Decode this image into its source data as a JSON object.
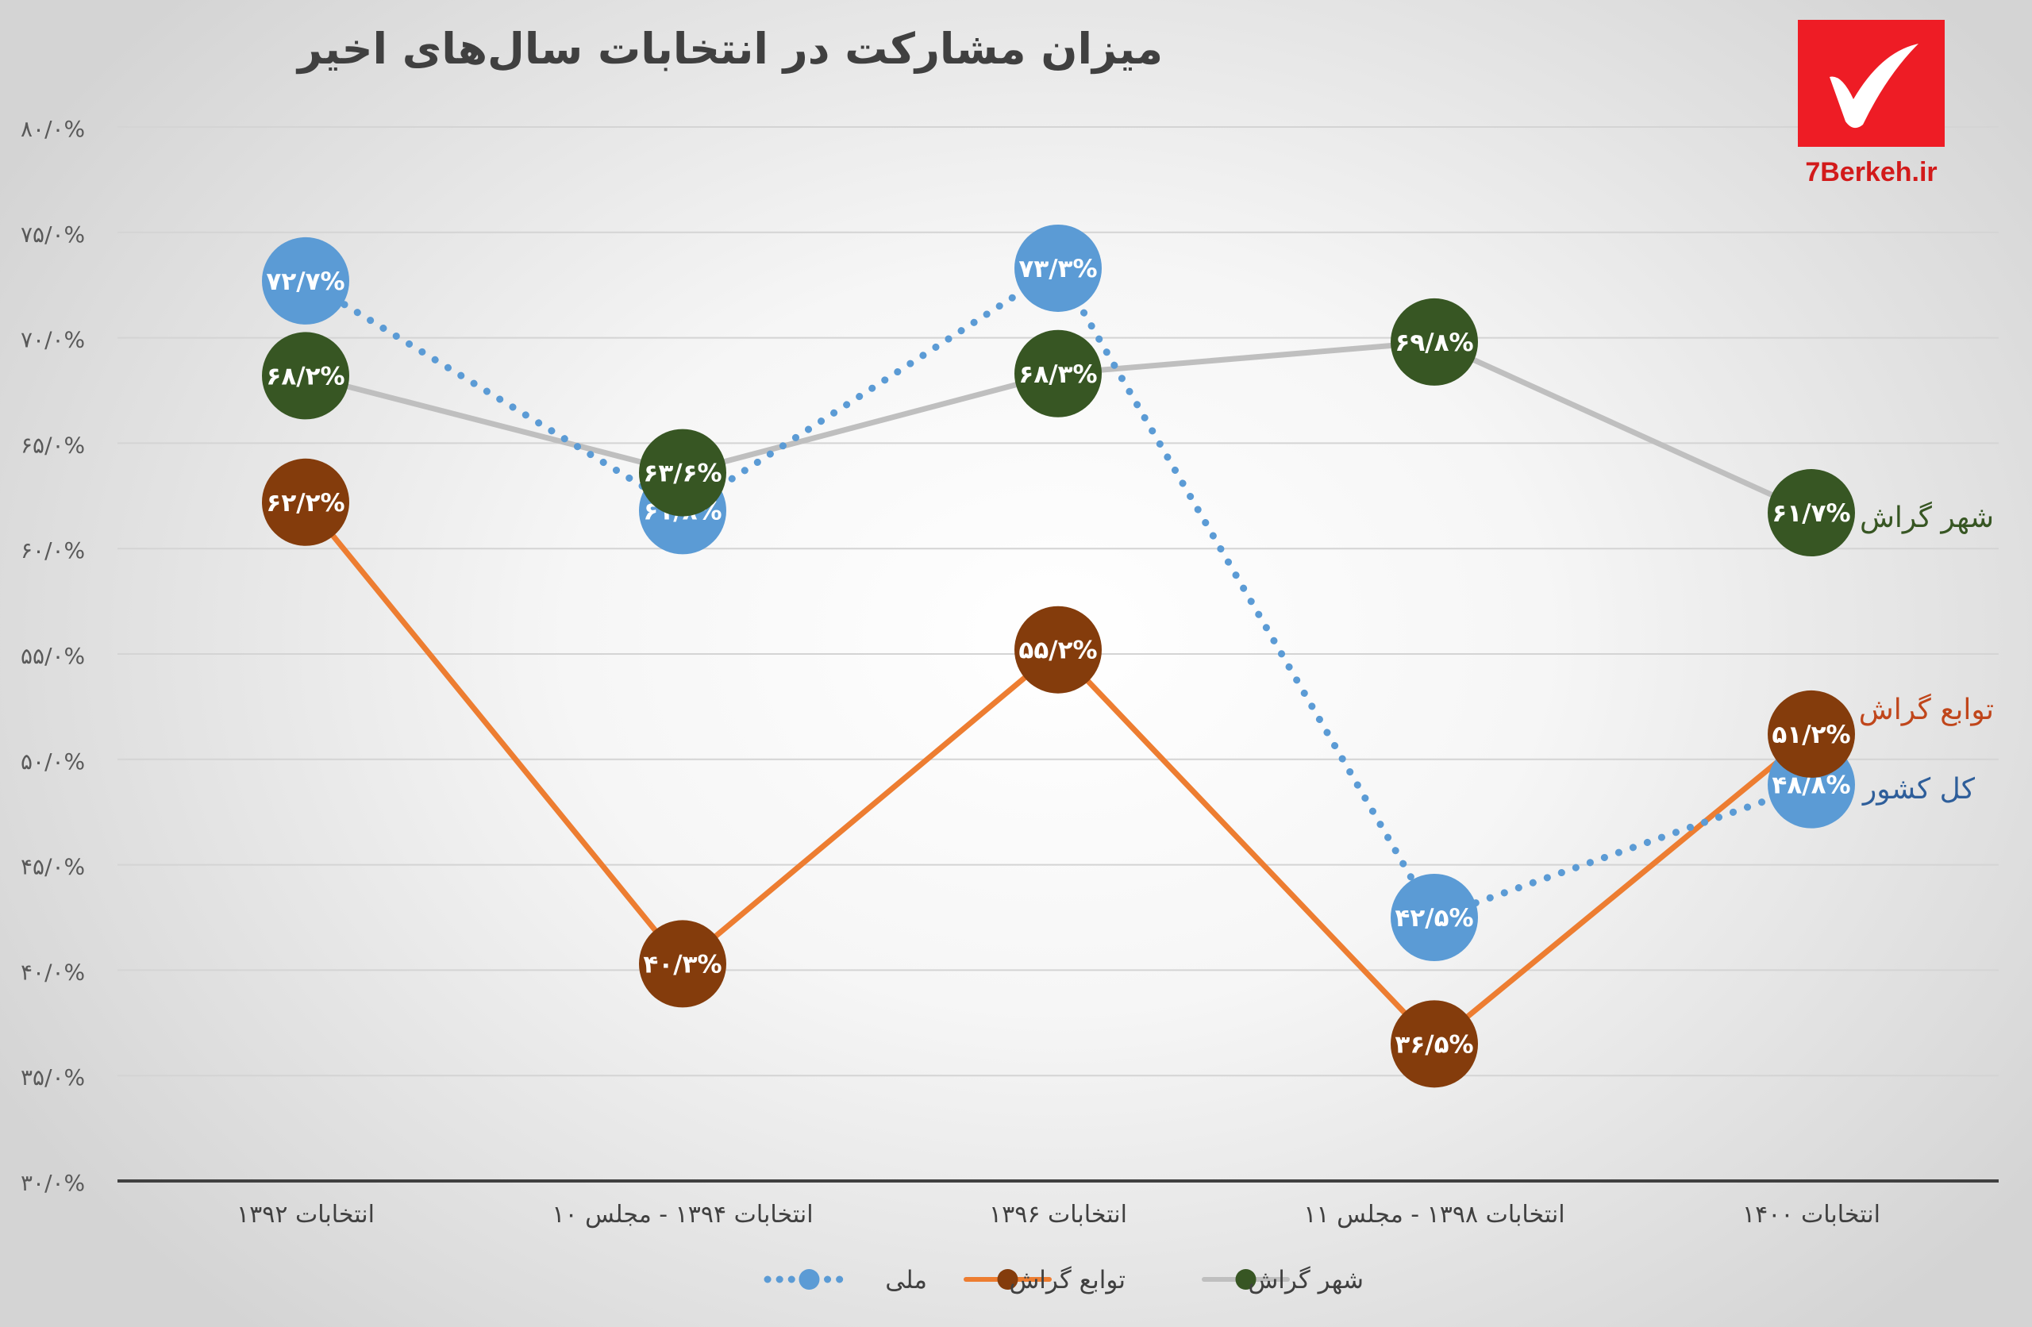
{
  "brand": {
    "logo_icon": "checkmark-icon",
    "site": "7Berkeh.ir",
    "color": "#ee1c25"
  },
  "chart_data": {
    "type": "line",
    "title": "میزان مشارکت در انتخابات سال‌های اخیر",
    "categories": [
      "انتخابات ۱۳۹۲",
      "انتخابات ۱۳۹۴ - مجلس ۱۰",
      "انتخابات ۱۳۹۶",
      "انتخابات ۱۳۹۸ - مجلس ۱۱",
      "انتخابات ۱۴۰۰"
    ],
    "ylim": [
      30,
      80
    ],
    "yticks": [
      30,
      35,
      40,
      45,
      50,
      55,
      60,
      65,
      70,
      75,
      80
    ],
    "ytick_labels": [
      "۳۰/۰%",
      "۳۵/۰%",
      "۴۰/۰%",
      "۴۵/۰%",
      "۵۰/۰%",
      "۵۵/۰%",
      "۶۰/۰%",
      "۶۵/۰%",
      "۷۰/۰%",
      "۷۵/۰%",
      "۸۰/۰%"
    ],
    "grid": true,
    "legend_position": "bottom",
    "series": [
      {
        "key": "national",
        "name": "ملی",
        "end_label": "کل کشور",
        "values": [
          72.7,
          61.8,
          73.3,
          42.5,
          48.8
        ],
        "labels": [
          "۷۲/۷%",
          "۶۱/۸%",
          "۷۳/۳%",
          "۴۲/۵%",
          "۴۸/۸%"
        ],
        "line_color": "#5b9bd5",
        "marker_color": "#5b9bd5",
        "label_color": "#2e5e9a",
        "style": "dotted"
      },
      {
        "key": "suburbs",
        "name": "توابع گراش",
        "end_label": "توابع گراش",
        "values": [
          62.2,
          40.3,
          55.2,
          36.5,
          51.2
        ],
        "labels": [
          "۶۲/۲%",
          "۴۰/۳%",
          "۵۵/۲%",
          "۳۶/۵%",
          "۵۱/۲%"
        ],
        "line_color": "#ed7d31",
        "marker_color": "#843c0c",
        "label_color": "#c0461b",
        "style": "solid"
      },
      {
        "key": "city",
        "name": "شهر گراش",
        "end_label": "شهر گراش",
        "values": [
          68.2,
          63.6,
          68.3,
          69.8,
          61.7
        ],
        "labels": [
          "۶۸/۲%",
          "۶۳/۶%",
          "۶۸/۳%",
          "۶۹/۸%",
          "۶۱/۷%"
        ],
        "line_color": "#bfbfbf",
        "marker_color": "#375623",
        "label_color": "#375623",
        "style": "solid"
      }
    ]
  }
}
